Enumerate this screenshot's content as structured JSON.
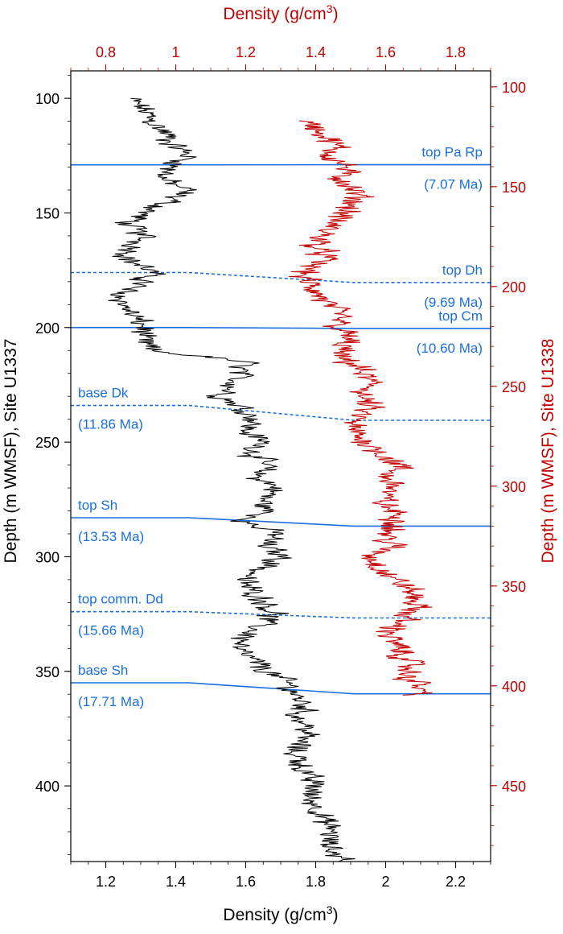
{
  "chart_data": {
    "type": "line",
    "bottom_axis": {
      "label": "Density (g/cm",
      "label_sup": "3",
      "label_end": ")",
      "range": [
        1.1,
        2.3
      ],
      "ticks": [
        "1.2",
        "1.4",
        "1.6",
        "1.8",
        "2",
        "2.2"
      ],
      "color": "#000000"
    },
    "top_axis": {
      "label": "Density (g/cm",
      "label_sup": "3",
      "label_end": ")",
      "range": [
        0.7,
        1.9
      ],
      "ticks": [
        "0.8",
        "1",
        "1.2",
        "1.4",
        "1.6",
        "1.8"
      ],
      "color": "#c00000"
    },
    "left_axis": {
      "label": "Depth (m WMSF), Site U1337",
      "range": [
        88,
        433
      ],
      "ticks": [
        "100",
        "150",
        "200",
        "250",
        "300",
        "350",
        "400"
      ],
      "color": "#000000"
    },
    "right_axis": {
      "label": "Depth (m WMSF), Site U1338",
      "range": [
        92,
        488
      ],
      "ticks": [
        "100",
        "150",
        "200",
        "250",
        "300",
        "350",
        "400",
        "450"
      ],
      "color": "#c00000"
    },
    "series": [
      {
        "site": "U1337",
        "color": "#000000",
        "points": [
          [
            100,
            1.27
          ],
          [
            105,
            1.31
          ],
          [
            110,
            1.33
          ],
          [
            115,
            1.37
          ],
          [
            120,
            1.39
          ],
          [
            125,
            1.44
          ],
          [
            130,
            1.39
          ],
          [
            135,
            1.36
          ],
          [
            140,
            1.43
          ],
          [
            145,
            1.38
          ],
          [
            150,
            1.31
          ],
          [
            155,
            1.26
          ],
          [
            160,
            1.31
          ],
          [
            165,
            1.28
          ],
          [
            170,
            1.26
          ],
          [
            175,
            1.33
          ],
          [
            180,
            1.31
          ],
          [
            185,
            1.24
          ],
          [
            190,
            1.25
          ],
          [
            195,
            1.28
          ],
          [
            200,
            1.31
          ],
          [
            205,
            1.3
          ],
          [
            210,
            1.33
          ],
          [
            215,
            1.6
          ],
          [
            220,
            1.58
          ],
          [
            225,
            1.57
          ],
          [
            230,
            1.53
          ],
          [
            235,
            1.59
          ],
          [
            240,
            1.63
          ],
          [
            245,
            1.6
          ],
          [
            250,
            1.65
          ],
          [
            255,
            1.62
          ],
          [
            260,
            1.66
          ],
          [
            265,
            1.63
          ],
          [
            270,
            1.69
          ],
          [
            275,
            1.65
          ],
          [
            280,
            1.66
          ],
          [
            285,
            1.6
          ],
          [
            290,
            1.69
          ],
          [
            295,
            1.65
          ],
          [
            300,
            1.71
          ],
          [
            305,
            1.65
          ],
          [
            310,
            1.59
          ],
          [
            315,
            1.62
          ],
          [
            320,
            1.66
          ],
          [
            325,
            1.68
          ],
          [
            330,
            1.64
          ],
          [
            335,
            1.6
          ],
          [
            340,
            1.57
          ],
          [
            345,
            1.62
          ],
          [
            350,
            1.66
          ],
          [
            355,
            1.72
          ],
          [
            360,
            1.74
          ],
          [
            365,
            1.77
          ],
          [
            370,
            1.75
          ],
          [
            375,
            1.78
          ],
          [
            380,
            1.76
          ],
          [
            385,
            1.74
          ],
          [
            390,
            1.76
          ],
          [
            395,
            1.77
          ],
          [
            400,
            1.8
          ],
          [
            405,
            1.78
          ],
          [
            410,
            1.81
          ],
          [
            415,
            1.82
          ],
          [
            420,
            1.85
          ],
          [
            425,
            1.83
          ],
          [
            430,
            1.86
          ],
          [
            433,
            1.9
          ]
        ]
      },
      {
        "site": "U1338",
        "color": "#c00000",
        "points": [
          [
            117,
            1.36
          ],
          [
            120,
            1.4
          ],
          [
            125,
            1.43
          ],
          [
            130,
            1.46
          ],
          [
            135,
            1.44
          ],
          [
            140,
            1.49
          ],
          [
            145,
            1.47
          ],
          [
            150,
            1.5
          ],
          [
            155,
            1.52
          ],
          [
            160,
            1.5
          ],
          [
            165,
            1.47
          ],
          [
            170,
            1.44
          ],
          [
            175,
            1.42
          ],
          [
            180,
            1.4
          ],
          [
            185,
            1.43
          ],
          [
            190,
            1.39
          ],
          [
            195,
            1.36
          ],
          [
            200,
            1.39
          ],
          [
            205,
            1.41
          ],
          [
            210,
            1.44
          ],
          [
            215,
            1.47
          ],
          [
            220,
            1.46
          ],
          [
            225,
            1.49
          ],
          [
            230,
            1.48
          ],
          [
            235,
            1.46
          ],
          [
            240,
            1.52
          ],
          [
            245,
            1.54
          ],
          [
            250,
            1.56
          ],
          [
            255,
            1.53
          ],
          [
            260,
            1.55
          ],
          [
            265,
            1.52
          ],
          [
            270,
            1.5
          ],
          [
            275,
            1.52
          ],
          [
            280,
            1.56
          ],
          [
            285,
            1.6
          ],
          [
            290,
            1.64
          ],
          [
            295,
            1.6
          ],
          [
            300,
            1.63
          ],
          [
            305,
            1.59
          ],
          [
            310,
            1.6
          ],
          [
            315,
            1.64
          ],
          [
            320,
            1.63
          ],
          [
            325,
            1.6
          ],
          [
            330,
            1.62
          ],
          [
            335,
            1.56
          ],
          [
            340,
            1.58
          ],
          [
            345,
            1.61
          ],
          [
            350,
            1.66
          ],
          [
            355,
            1.68
          ],
          [
            360,
            1.69
          ],
          [
            365,
            1.66
          ],
          [
            370,
            1.63
          ],
          [
            375,
            1.61
          ],
          [
            380,
            1.63
          ],
          [
            385,
            1.65
          ],
          [
            390,
            1.67
          ],
          [
            395,
            1.66
          ],
          [
            400,
            1.7
          ],
          [
            405,
            1.69
          ]
        ]
      }
    ],
    "horizons": [
      {
        "label": "top Pa Rp",
        "age": "(7.07 Ma)",
        "style": "solid",
        "depth_u1337": 129,
        "depth_u1338": 139,
        "label_side": "right"
      },
      {
        "label": "top Dh",
        "age": "(9.69 Ma)",
        "style": "dashed",
        "depth_u1337": 176,
        "depth_u1338": 198,
        "label_side": "right"
      },
      {
        "label": "top Cm",
        "age": "(10.60 Ma)",
        "style": "solid",
        "depth_u1337": 200,
        "depth_u1338": 221,
        "label_side": "right"
      },
      {
        "label": "base Dk",
        "age": "(11.86 Ma)",
        "style": "dashed",
        "depth_u1337": 234,
        "depth_u1338": 267,
        "label_side": "left"
      },
      {
        "label": "top Sh",
        "age": "(13.53 Ma)",
        "style": "solid",
        "depth_u1337": 283,
        "depth_u1338": 320,
        "label_side": "left"
      },
      {
        "label": "top comm. Dd",
        "age": "(15.66 Ma)",
        "style": "dashed",
        "depth_u1337": 324,
        "depth_u1338": 366,
        "label_side": "left"
      },
      {
        "label": "base Sh",
        "age": "(17.71 Ma)",
        "style": "solid",
        "depth_u1337": 355,
        "depth_u1338": 404,
        "label_side": "left"
      }
    ],
    "horizon_color": "#1a6fe0",
    "grid": false
  }
}
